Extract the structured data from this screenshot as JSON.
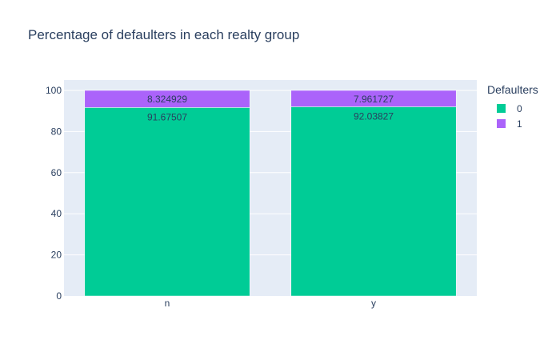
{
  "chart_data": {
    "type": "bar",
    "barmode": "stack",
    "title": "Percentage of defaulters in each realty group",
    "xlabel": "",
    "ylabel": "",
    "categories": [
      "n",
      "y"
    ],
    "ylim": [
      0,
      100
    ],
    "yticks": [
      0,
      20,
      40,
      60,
      80,
      100
    ],
    "grid": true,
    "legend_title": "Defaulters",
    "legend_position": "top-right",
    "series": [
      {
        "name": "0",
        "color": "#00cc96",
        "values": [
          91.67507,
          92.03827
        ],
        "labels": [
          "91.67507",
          "92.03827"
        ]
      },
      {
        "name": "1",
        "color": "#ab63fa",
        "values": [
          8.324929,
          7.961727
        ],
        "labels": [
          "8.324929",
          "7.961727"
        ]
      }
    ]
  }
}
